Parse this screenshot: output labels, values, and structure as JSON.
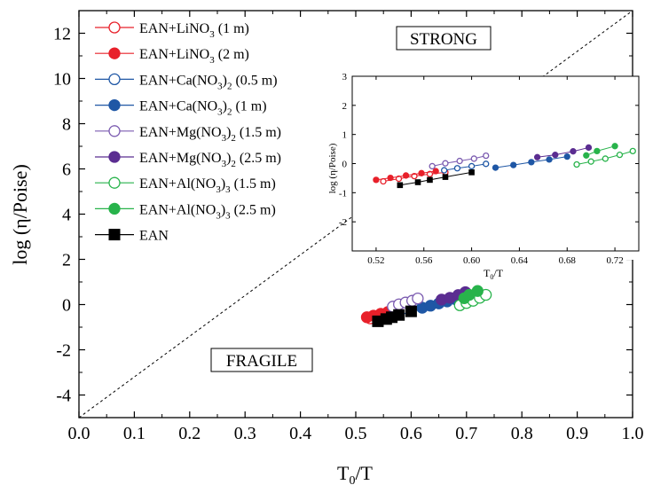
{
  "chart_data": {
    "type": "scatter",
    "xlabel": "T0/T",
    "ylabel": "log (η/Poise)",
    "xlim": [
      0.0,
      1.0
    ],
    "ylim": [
      -5,
      13
    ],
    "xticks": [
      "0.0",
      "0.1",
      "0.2",
      "0.3",
      "0.4",
      "0.5",
      "0.6",
      "0.7",
      "0.8",
      "0.9",
      "1.0"
    ],
    "yticks": [
      "-4",
      "-2",
      "0",
      "2",
      "4",
      "6",
      "8",
      "10",
      "12"
    ],
    "annotations": {
      "strong": "STRONG",
      "fragile": "FRAGILE"
    },
    "reference_line": {
      "x": [
        0.0,
        1.0
      ],
      "y": [
        -5,
        13
      ]
    },
    "legend_position": "top-left",
    "series": [
      {
        "name": "EAN+LiNO3 (1 m)",
        "label": {
          "pre": "EAN+LiNO",
          "sub": "3",
          "post": " (1 m)"
        },
        "color": "#e8202a",
        "filled": false,
        "x": [
          0.526,
          0.539,
          0.552,
          0.565,
          0.578
        ],
        "y": [
          -0.61,
          -0.52,
          -0.43,
          -0.36,
          -0.3
        ]
      },
      {
        "name": "EAN+LiNO3 (2 m)",
        "label": {
          "pre": "EAN+LiNO",
          "sub": "3",
          "post": " (2 m)"
        },
        "color": "#e8202a",
        "filled": true,
        "x": [
          0.52,
          0.532,
          0.545,
          0.558,
          0.57
        ],
        "y": [
          -0.56,
          -0.49,
          -0.41,
          -0.33,
          -0.26
        ]
      },
      {
        "name": "EAN+Ca(NO3)2 (0.5 m)",
        "label": {
          "pre": "EAN+Ca(NO",
          "sub": "3",
          "post": ")",
          "sub2": "2",
          "post2": " (0.5 m)"
        },
        "color": "#1f57a5",
        "filled": false,
        "x": [
          0.577,
          0.588,
          0.6,
          0.612
        ],
        "y": [
          -0.23,
          -0.16,
          -0.09,
          -0.01
        ]
      },
      {
        "name": "EAN+Ca(NO3)2 (1 m)",
        "label": {
          "pre": "EAN+Ca(NO",
          "sub": "3",
          "post": ")",
          "sub2": "2",
          "post2": " (1 m)"
        },
        "color": "#1f57a5",
        "filled": true,
        "x": [
          0.62,
          0.635,
          0.65,
          0.665,
          0.68
        ],
        "y": [
          -0.14,
          -0.05,
          0.05,
          0.14,
          0.24
        ]
      },
      {
        "name": "EAN+Mg(NO3)2 (1.5 m)",
        "label": {
          "pre": "EAN+Mg(NO",
          "sub": "3",
          "post": ")",
          "sub2": "2",
          "post2": " (1.5 m)"
        },
        "color": "#7b5bb0",
        "filled": false,
        "x": [
          0.567,
          0.578,
          0.59,
          0.602,
          0.612
        ],
        "y": [
          -0.09,
          0.01,
          0.09,
          0.17,
          0.27
        ]
      },
      {
        "name": "EAN+Mg(NO3)2 (2.5 m)",
        "label": {
          "pre": "EAN+Mg(NO",
          "sub": "3",
          "post": ")",
          "sub2": "2",
          "post2": " (2.5 m)"
        },
        "color": "#5b2d91",
        "filled": true,
        "x": [
          0.655,
          0.67,
          0.685,
          0.698
        ],
        "y": [
          0.22,
          0.3,
          0.42,
          0.55
        ]
      },
      {
        "name": "EAN+Al(NO3)3 (1.5 m)",
        "label": {
          "pre": "EAN+Al(NO",
          "sub": "3",
          "post": ")",
          "sub2": "3",
          "post2": " (1.5 m)"
        },
        "color": "#28b34b",
        "filled": false,
        "x": [
          0.688,
          0.7,
          0.712,
          0.724,
          0.735
        ],
        "y": [
          -0.03,
          0.07,
          0.17,
          0.3,
          0.43
        ]
      },
      {
        "name": "EAN+Al(NO3)3 (2.5 m)",
        "label": {
          "pre": "EAN+Al(NO",
          "sub": "3",
          "post": ")",
          "sub2": "3",
          "post2": " (2.5 m)"
        },
        "color": "#28b34b",
        "filled": true,
        "x": [
          0.696,
          0.705,
          0.72
        ],
        "y": [
          0.28,
          0.43,
          0.6
        ]
      },
      {
        "name": "EAN",
        "label": {
          "pre": "EAN"
        },
        "color": "#000000",
        "filled": true,
        "marker": "square",
        "x": [
          0.54,
          0.555,
          0.565,
          0.578,
          0.6
        ],
        "y": [
          -0.74,
          -0.64,
          -0.56,
          -0.46,
          -0.3
        ]
      }
    ],
    "inset": {
      "xlabel": "T0/T",
      "ylabel": "log (η/Poise)",
      "xlim": [
        0.5,
        0.74
      ],
      "ylim": [
        -3,
        3
      ],
      "xticks": [
        "0.52",
        "0.56",
        "0.60",
        "0.64",
        "0.68",
        "0.72"
      ],
      "yticks": [
        "-2",
        "-1",
        "0",
        "1",
        "2",
        "3"
      ]
    }
  }
}
